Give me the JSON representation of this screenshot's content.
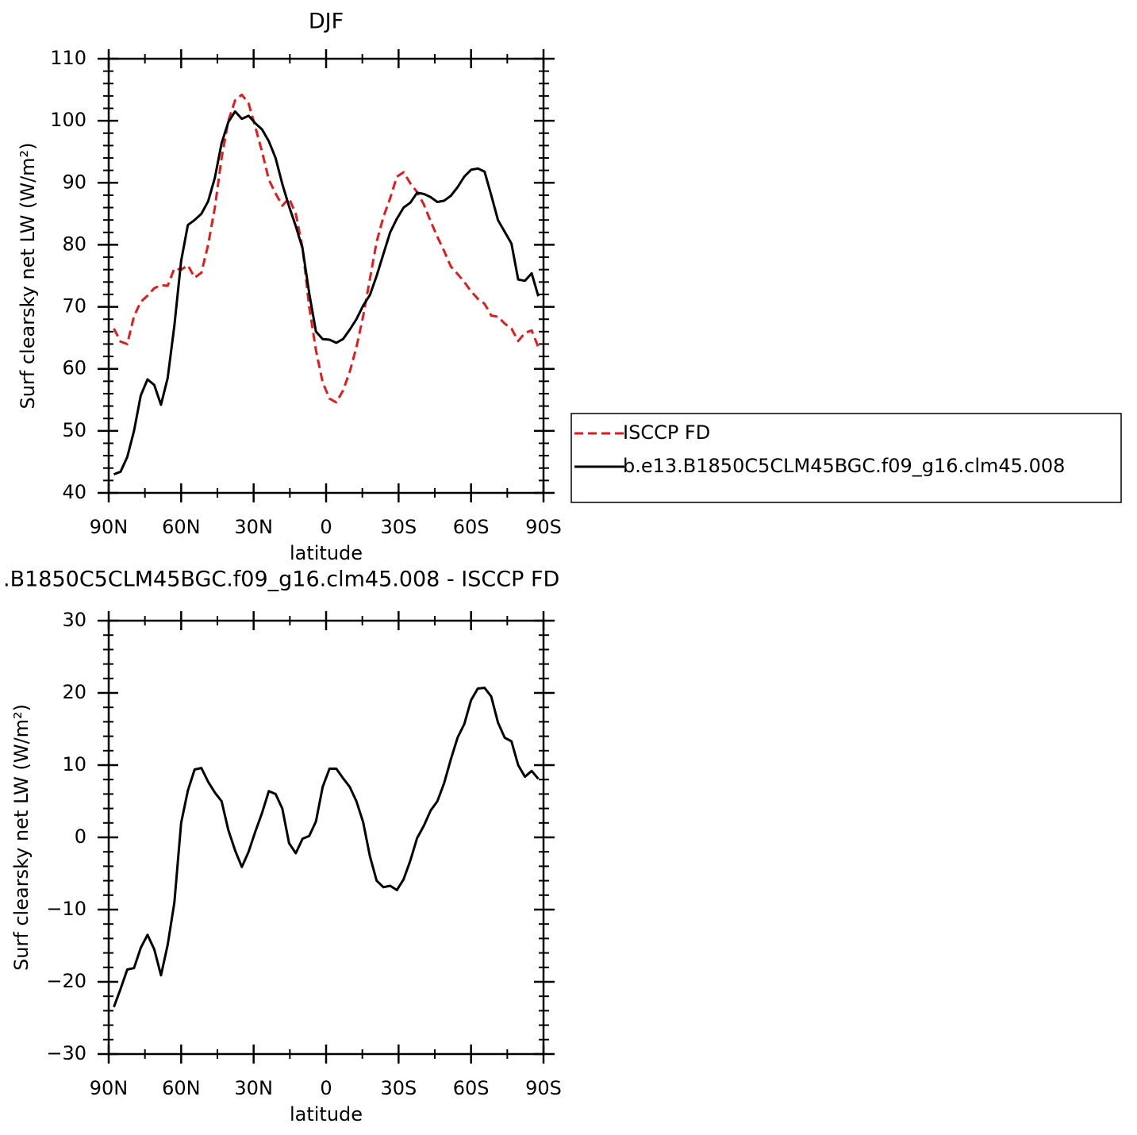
{
  "chart_data": [
    {
      "type": "line",
      "title": "DJF",
      "xlabel": "latitude",
      "ylabel": "Surf clearsky net LW (W/m²)",
      "x": [
        87.86,
        85.1,
        82.31,
        79.53,
        76.74,
        73.95,
        71.16,
        68.37,
        65.58,
        62.79,
        60.0,
        57.21,
        54.42,
        51.63,
        48.84,
        46.04,
        43.25,
        40.46,
        37.67,
        34.88,
        32.09,
        29.3,
        26.51,
        23.72,
        20.93,
        18.14,
        15.35,
        12.56,
        9.77,
        6.98,
        4.19,
        1.4,
        -1.4,
        -4.19,
        -6.98,
        -9.77,
        -12.56,
        -15.35,
        -18.14,
        -20.93,
        -23.72,
        -26.51,
        -29.3,
        -32.09,
        -34.88,
        -37.67,
        -40.46,
        -43.25,
        -46.04,
        -48.84,
        -51.63,
        -54.42,
        -57.21,
        -60.0,
        -62.79,
        -65.58,
        -68.37,
        -71.16,
        -73.95,
        -76.74,
        -79.53,
        -82.31,
        -85.1,
        -87.86
      ],
      "series": [
        {
          "name": "ISCCP FD",
          "color": "#e41a1c",
          "dash": true,
          "values": [
            66.5,
            64.4,
            64,
            68.5,
            70.8,
            71.8,
            73,
            73.5,
            73.4,
            76.2,
            76,
            76.7,
            74.7,
            75.5,
            80,
            86,
            94,
            100,
            103.3,
            104.2,
            102.8,
            99,
            95,
            90.5,
            88.3,
            86.3,
            87.5,
            85,
            79.5,
            70,
            63,
            57.8,
            55.2,
            54.6,
            56.5,
            59.5,
            63.5,
            68.5,
            74.5,
            80.5,
            84.5,
            87.5,
            91,
            91.7,
            89.9,
            88.5,
            86.5,
            83.8,
            81.3,
            79,
            76.5,
            75.3,
            74,
            72.5,
            71.3,
            70.5,
            68.6,
            68.4,
            67.3,
            66.5,
            64.5,
            65.8,
            66.2,
            63.5
          ]
        },
        {
          "name": "b.e13.B1850C5CLM45BGC.f09_g16.clm45.008",
          "color": "#000000",
          "dash": false,
          "values": [
            43,
            43.4,
            45.8,
            50,
            55.7,
            58.3,
            57.4,
            54.2,
            58.5,
            67,
            77.4,
            83.2,
            84,
            85,
            87,
            90.8,
            96.4,
            99.8,
            101.5,
            100.3,
            100.8,
            99.6,
            98.6,
            96.7,
            94,
            89.8,
            86.2,
            83,
            79.4,
            72.2,
            66,
            64.8,
            64.7,
            64.2,
            64.8,
            66.3,
            68,
            70.2,
            71.9,
            75,
            78.5,
            82,
            84.2,
            86,
            86.8,
            88.4,
            88.2,
            87.7,
            86.9,
            87.1,
            87.9,
            89.3,
            91,
            92.1,
            92.3,
            91.8,
            88,
            84,
            82.1,
            80.2,
            74.4,
            74.2,
            75.4,
            71.7
          ]
        }
      ],
      "xlim": [
        90,
        -90
      ],
      "xticks": [
        {
          "value": 90,
          "label": "90N"
        },
        {
          "value": 60,
          "label": "60N"
        },
        {
          "value": 30,
          "label": "30N"
        },
        0,
        {
          "value": -30,
          "label": "30S"
        },
        {
          "value": -60,
          "label": "60S"
        },
        {
          "value": -90,
          "label": "90S"
        }
      ],
      "xminorticks": [
        75,
        45,
        15,
        -15,
        -45,
        -75
      ],
      "ylim": [
        40,
        110
      ],
      "yticks": [
        40,
        50,
        60,
        70,
        80,
        90,
        100,
        110
      ],
      "yminorticks": [
        42,
        44,
        46,
        48,
        52,
        54,
        56,
        58,
        62,
        64,
        66,
        68,
        72,
        74,
        76,
        78,
        82,
        84,
        86,
        88,
        92,
        94,
        96,
        98,
        102,
        104,
        106,
        108
      ],
      "legend": "right"
    },
    {
      "type": "line",
      "title": ".B1850C5CLM45BGC.f09_g16.clm45.008 - ISCCP FD",
      "xlabel": "latitude",
      "ylabel": "Surf clearsky net LW (W/m²)",
      "x": [
        87.86,
        85.1,
        82.31,
        79.53,
        76.74,
        73.95,
        71.16,
        68.37,
        65.58,
        62.79,
        60.0,
        57.21,
        54.42,
        51.63,
        48.84,
        46.04,
        43.25,
        40.46,
        37.67,
        34.88,
        32.09,
        29.3,
        26.51,
        23.72,
        20.93,
        18.14,
        15.35,
        12.56,
        9.77,
        6.98,
        4.19,
        1.4,
        -1.4,
        -4.19,
        -6.98,
        -9.77,
        -12.56,
        -15.35,
        -18.14,
        -20.93,
        -23.72,
        -26.51,
        -29.3,
        -32.09,
        -34.88,
        -37.67,
        -40.46,
        -43.25,
        -46.04,
        -48.84,
        -51.63,
        -54.42,
        -57.21,
        -60.0,
        -62.79,
        -65.58,
        -68.37,
        -71.16,
        -73.95,
        -76.74,
        -79.53,
        -82.31,
        -85.1,
        -87.86
      ],
      "series": [
        {
          "color": "#000000",
          "dash": false,
          "values": [
            -23.5,
            -21,
            -18.3,
            -18.1,
            -15.3,
            -13.5,
            -15.5,
            -19.1,
            -14.9,
            -9,
            2,
            6.5,
            9.4,
            9.6,
            7.7,
            6.2,
            5,
            1,
            -1.8,
            -4.1,
            -2,
            0.8,
            3.4,
            6.4,
            6,
            4,
            -0.8,
            -2.2,
            -0.2,
            0.2,
            2.2,
            7,
            9.5,
            9.5,
            8.2,
            7,
            5,
            2.1,
            -2.6,
            -6,
            -6.9,
            -6.7,
            -7.3,
            -5.8,
            -3.2,
            -0.1,
            1.6,
            3.7,
            5,
            7.5,
            10.8,
            13.8,
            15.7,
            19,
            20.6,
            20.7,
            19.5,
            15.9,
            13.8,
            13.3,
            10,
            8.4,
            9.2,
            8.1
          ]
        }
      ],
      "xlim": [
        90,
        -90
      ],
      "xticks": [
        {
          "value": 90,
          "label": "90N"
        },
        {
          "value": 60,
          "label": "60N"
        },
        {
          "value": 30,
          "label": "30N"
        },
        0,
        {
          "value": -30,
          "label": "30S"
        },
        {
          "value": -60,
          "label": "60S"
        },
        {
          "value": -90,
          "label": "90S"
        }
      ],
      "xminorticks": [
        75,
        45,
        15,
        -15,
        -45,
        -75
      ],
      "ylim": [
        -30,
        30
      ],
      "yticks": [
        {
          "value": -30,
          "label": "−30"
        },
        {
          "value": -20,
          "label": "−20"
        },
        {
          "value": -10,
          "label": "−10"
        },
        0,
        10,
        20,
        30
      ],
      "yminorticks": [
        -28,
        -26,
        -24,
        -22,
        -18,
        -16,
        -14,
        -12,
        -8,
        -6,
        -4,
        -2,
        2,
        4,
        6,
        8,
        12,
        14,
        16,
        18,
        22,
        24,
        26,
        28
      ]
    }
  ]
}
